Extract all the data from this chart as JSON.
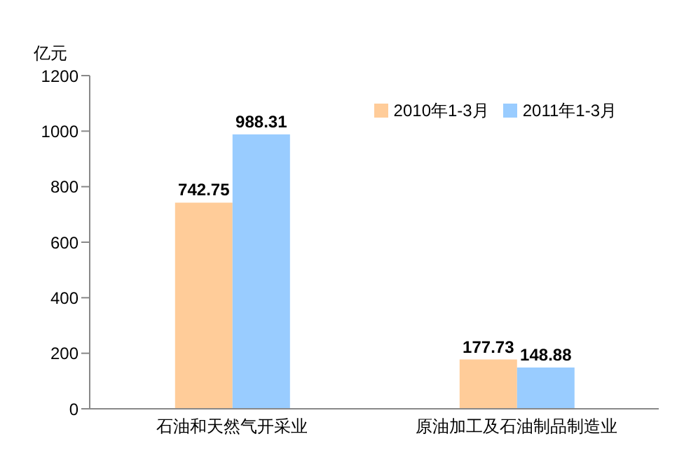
{
  "chart_data": {
    "type": "bar",
    "ylabel": "亿元",
    "categories": [
      "石油和天然气开采业",
      "原油加工及石油制品制造业"
    ],
    "series": [
      {
        "name": "2010年1-3月",
        "color": "#ffcc99",
        "values": [
          742.75,
          177.73
        ]
      },
      {
        "name": "2011年1-3月",
        "color": "#99ccff",
        "values": [
          988.31,
          148.88
        ]
      }
    ],
    "ylim": [
      0,
      1200
    ],
    "yticks": [
      0,
      200,
      400,
      600,
      800,
      1000,
      1200
    ],
    "data_labels": true,
    "legend": "top right",
    "grid": false
  }
}
